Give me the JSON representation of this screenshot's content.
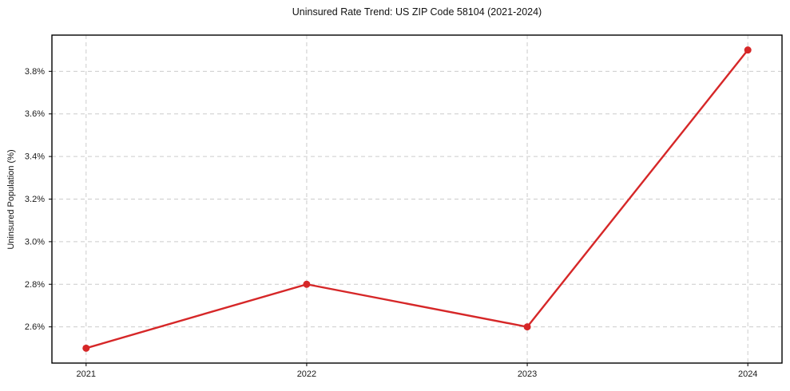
{
  "chart_data": {
    "type": "line",
    "title": "Uninsured Rate Trend: US ZIP Code 58104 (2021-2024)",
    "xlabel": "",
    "ylabel": "Uninsured Population (%)",
    "x": [
      2021,
      2022,
      2023,
      2024
    ],
    "values": [
      2.5,
      2.8,
      2.6,
      3.9
    ],
    "xticks": [
      2021,
      2022,
      2023,
      2024
    ],
    "xtick_labels": [
      "2021",
      "2022",
      "2023",
      "2024"
    ],
    "yticks": [
      2.6,
      2.8,
      3.0,
      3.2,
      3.4,
      3.6,
      3.8
    ],
    "ytick_labels": [
      "2.6%",
      "2.8%",
      "3.0%",
      "3.2%",
      "3.4%",
      "3.6%",
      "3.8%"
    ],
    "xlim": [
      2020.845,
      2024.155
    ],
    "ylim": [
      2.43,
      3.97
    ],
    "grid": true,
    "grid_style": "dashed",
    "legend_position": "none",
    "line_color": "#d62728",
    "marker": "circle",
    "marker_radius": 4.5,
    "line_width": 2.4,
    "grid_color": "#cccccc",
    "axis_color": "#000000",
    "tick_label_color": "#1a1a1a"
  }
}
